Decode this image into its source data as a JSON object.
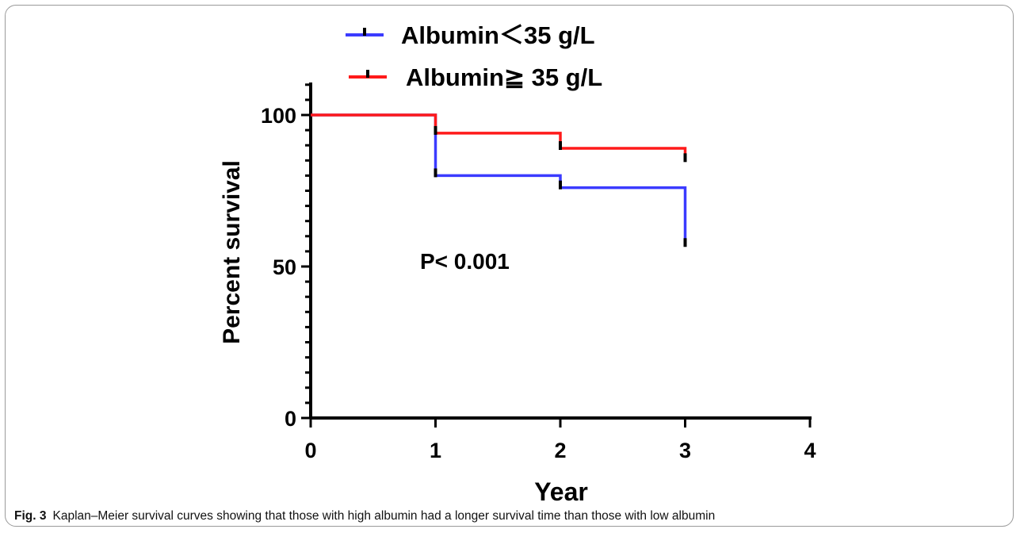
{
  "chart_data": {
    "type": "line",
    "step": true,
    "xlabel": "Year",
    "ylabel": "Percent survival",
    "xlim": [
      0,
      4
    ],
    "ylim": [
      0,
      100
    ],
    "x_ticks": [
      0,
      1,
      2,
      3,
      4
    ],
    "y_ticks": [
      0,
      50,
      100
    ],
    "grid": false,
    "legend_position": "top-center",
    "annotation": "P< 0.001",
    "series": [
      {
        "name": "Albumin＜35 g/L",
        "color": "#3b3bff",
        "x": [
          0,
          1,
          2,
          3
        ],
        "y": [
          100,
          80,
          76,
          57
        ],
        "censored": [
          {
            "x": 1,
            "y": 80
          },
          {
            "x": 2,
            "y": 76
          },
          {
            "x": 3,
            "y": 57
          }
        ]
      },
      {
        "name": "Albumin≧ 35 g/L",
        "color": "#ff1a1a",
        "x": [
          0,
          1,
          2,
          3
        ],
        "y": [
          100,
          94,
          89,
          85
        ],
        "censored": [
          {
            "x": 1,
            "y": 94
          },
          {
            "x": 2,
            "y": 89
          },
          {
            "x": 3,
            "y": 85
          }
        ]
      }
    ]
  },
  "caption": {
    "label": "Fig. 3",
    "text": "Kaplan–Meier survival curves showing that those with high albumin had a longer survival time than those with low albumin"
  }
}
